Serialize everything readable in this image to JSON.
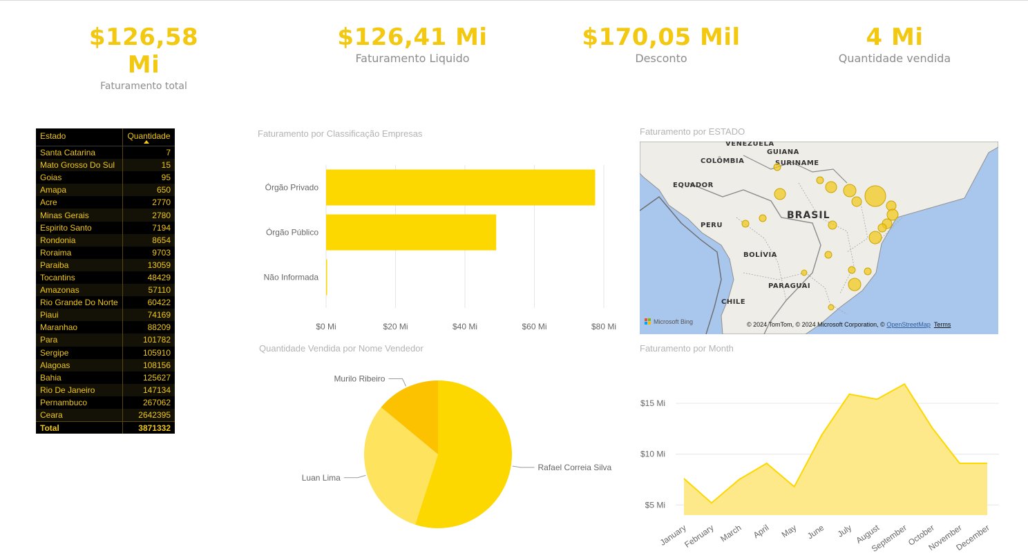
{
  "colors": {
    "accent": "#f2c811",
    "bar": "#fdd700",
    "area_fill": "#fde98a",
    "area_line": "#fdd700",
    "pie_1": "#fdd700",
    "pie_2": "#fde35e",
    "pie_3": "#fcc200",
    "table_bg": "#000000",
    "map_water": "#a9c6ec",
    "map_land": "#efede8"
  },
  "kpis": [
    {
      "value": "$126,58 Mi",
      "label": "Faturamento total"
    },
    {
      "value": "$126,41 Mi",
      "label": "Faturamento Liquido"
    },
    {
      "value": "$170,05 Mil",
      "label": "Desconto"
    },
    {
      "value": "4 Mi",
      "label": "Quantidade vendida"
    }
  ],
  "table": {
    "headers": [
      "Estado",
      "Quantidade"
    ],
    "sorted_column": "Quantidade",
    "rows": [
      [
        "Santa Catarina",
        "7"
      ],
      [
        "Mato Grosso Do Sul",
        "15"
      ],
      [
        "Goias",
        "95"
      ],
      [
        "Amapa",
        "650"
      ],
      [
        "Acre",
        "2770"
      ],
      [
        "Minas Gerais",
        "2780"
      ],
      [
        "Espirito Santo",
        "7194"
      ],
      [
        "Rondonia",
        "8654"
      ],
      [
        "Roraima",
        "9703"
      ],
      [
        "Paraiba",
        "13059"
      ],
      [
        "Tocantins",
        "48429"
      ],
      [
        "Amazonas",
        "57110"
      ],
      [
        "Rio Grande Do Norte",
        "60422"
      ],
      [
        "Piaui",
        "74169"
      ],
      [
        "Maranhao",
        "88209"
      ],
      [
        "Para",
        "101782"
      ],
      [
        "Sergipe",
        "105910"
      ],
      [
        "Alagoas",
        "108156"
      ],
      [
        "Bahia",
        "125627"
      ],
      [
        "Rio De Janeiro",
        "147134"
      ],
      [
        "Pernambuco",
        "267062"
      ],
      [
        "Ceara",
        "2642395"
      ]
    ],
    "total": [
      "Total",
      "3871332"
    ]
  },
  "bar_panel": {
    "title": "Faturamento  por Classificação Empresas"
  },
  "map_panel": {
    "title": "Faturamento por ESTADO",
    "labels": {
      "venezuela": "VENEZUELA",
      "guiana": "GUIANA",
      "suriname": "SURINAME",
      "colombia": "COLÔMBIA",
      "equador": "EQUADOR",
      "brasil": "BRASIL",
      "peru": "PERU",
      "bolivia": "BOLÍVIA",
      "paraguai": "PARAGUAI",
      "chile": "CHILE"
    },
    "bing": "Microsoft Bing",
    "credit_text": "© 2024 TomTom, © 2024 Microsoft Corporation, © ",
    "credit_link": "OpenStreetMap",
    "terms": "Terms"
  },
  "pie_panel": {
    "title": "Quantidade Vendida por Nome Vendedor"
  },
  "area_panel": {
    "title": "Faturamento por Month"
  },
  "chart_data": [
    {
      "type": "bar",
      "orientation": "horizontal",
      "title": "Faturamento  por Classificação Empresas",
      "categories": [
        "Órgão Privado",
        "Órgão Público",
        "Não Informada"
      ],
      "values": [
        77.5,
        49,
        0.3
      ],
      "xlim": [
        0,
        80
      ],
      "xticks": [
        "$0 Mi",
        "$20 Mi",
        "$40 Mi",
        "$60 Mi",
        "$80 Mi"
      ],
      "grid": true
    },
    {
      "type": "pie",
      "title": "Quantidade Vendida por Nome Vendedor",
      "labels": [
        "Rafael Correia Silva",
        "Luan Lima",
        "Murilo Ribeiro"
      ],
      "values": [
        55,
        31,
        14
      ]
    },
    {
      "type": "area",
      "title": "Faturamento por Month",
      "categories": [
        "January",
        "February",
        "March",
        "April",
        "May",
        "June",
        "July",
        "August",
        "September",
        "October",
        "November",
        "December"
      ],
      "values": [
        7.6,
        5.2,
        7.5,
        9.1,
        6.8,
        11.9,
        15.9,
        15.4,
        16.9,
        12.6,
        9.1,
        9.1
      ],
      "ylim": [
        4,
        18
      ],
      "yticks": [
        "$5 Mi",
        "$10 Mi",
        "$15 Mi"
      ],
      "grid": true
    }
  ]
}
